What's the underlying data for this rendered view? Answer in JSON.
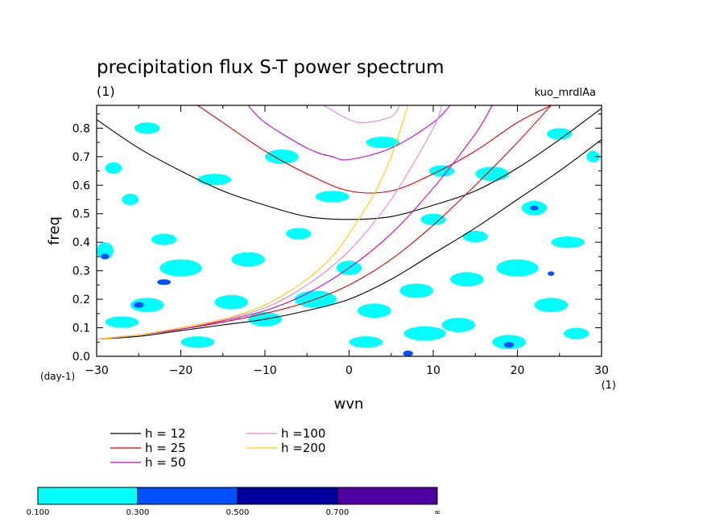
{
  "header": {
    "title": "precipitation flux S-T power spectrum",
    "subtitle": "(1)",
    "experiment": "kuo_mrdlAa"
  },
  "chart_data": {
    "type": "contour",
    "xlabel": "wvn",
    "ylabel": "freq",
    "xunit": "(1)",
    "yunit": "(day-1)",
    "xlim": [
      -30,
      30
    ],
    "ylim": [
      0,
      0.88
    ],
    "xticks": [
      -30,
      -20,
      -10,
      0,
      10,
      20,
      30
    ],
    "yticks": [
      0.0,
      0.1,
      0.2,
      0.3,
      0.4,
      0.5,
      0.6,
      0.7,
      0.8
    ],
    "series": [
      {
        "name": "h = 12",
        "color": "#000000",
        "x": [
          -30,
          -25,
          -20,
          -15,
          -10,
          -5,
          0,
          5,
          10,
          15,
          20,
          25,
          30
        ],
        "y": [
          0.83,
          0.73,
          0.65,
          0.58,
          0.53,
          0.49,
          0.48,
          0.49,
          0.53,
          0.58,
          0.66,
          0.76,
          0.87
        ]
      },
      {
        "name": "h = 25",
        "color": "#e00000",
        "x": [
          -18,
          -15,
          -10,
          -5,
          0,
          5,
          10,
          15,
          20,
          24
        ],
        "y": [
          0.88,
          0.82,
          0.72,
          0.64,
          0.58,
          0.58,
          0.64,
          0.72,
          0.82,
          0.88
        ]
      },
      {
        "name": "h = 50",
        "color": "#cc00cc",
        "x": [
          -12,
          -10,
          -5,
          -2,
          0,
          5,
          10,
          12
        ],
        "y": [
          0.88,
          0.82,
          0.73,
          0.7,
          0.69,
          0.73,
          0.82,
          0.88
        ]
      },
      {
        "name": "h =100",
        "color": "#dd88dd",
        "x": [
          -3,
          0,
          2,
          5,
          6
        ],
        "y": [
          0.88,
          0.83,
          0.82,
          0.84,
          0.88
        ]
      },
      {
        "name": "h = 12",
        "color": "#000000",
        "x": [
          -30,
          -25,
          -20,
          -15,
          -10,
          -5,
          0,
          5,
          10,
          15,
          20,
          25,
          30
        ],
        "y": [
          0.06,
          0.07,
          0.09,
          0.11,
          0.13,
          0.16,
          0.2,
          0.27,
          0.36,
          0.45,
          0.55,
          0.65,
          0.76
        ]
      },
      {
        "name": "h = 25",
        "color": "#e00000",
        "x": [
          -30,
          -25,
          -20,
          -15,
          -10,
          -5,
          0,
          5,
          10,
          15,
          20,
          24
        ],
        "y": [
          0.06,
          0.075,
          0.095,
          0.12,
          0.15,
          0.19,
          0.25,
          0.34,
          0.46,
          0.6,
          0.75,
          0.88
        ]
      },
      {
        "name": "h = 50",
        "color": "#cc00cc",
        "x": [
          -30,
          -25,
          -20,
          -15,
          -10,
          -5,
          0,
          5,
          10,
          15,
          17
        ],
        "y": [
          0.06,
          0.075,
          0.095,
          0.125,
          0.16,
          0.22,
          0.31,
          0.43,
          0.59,
          0.78,
          0.88
        ]
      },
      {
        "name": "h =100",
        "color": "#dd88dd",
        "x": [
          -30,
          -25,
          -20,
          -15,
          -10,
          -5,
          0,
          5,
          10,
          11
        ],
        "y": [
          0.06,
          0.075,
          0.1,
          0.13,
          0.17,
          0.25,
          0.37,
          0.55,
          0.8,
          0.88
        ]
      },
      {
        "name": "h =200",
        "color": "#ffcc00",
        "x": [
          -30,
          -25,
          -20,
          -15,
          -10,
          -5,
          -2,
          0,
          3,
          5,
          7
        ],
        "y": [
          0.06,
          0.075,
          0.1,
          0.13,
          0.18,
          0.27,
          0.35,
          0.43,
          0.57,
          0.7,
          0.88
        ]
      }
    ],
    "legend": {
      "placement": "bottom",
      "entries": [
        {
          "label": "h = 12",
          "color": "#000000"
        },
        {
          "label": "h = 25",
          "color": "#e00000"
        },
        {
          "label": "h = 50",
          "color": "#cc00cc"
        },
        {
          "label": "h =100",
          "color": "#dd88dd"
        },
        {
          "label": "h =200",
          "color": "#ffcc00"
        }
      ]
    },
    "colorbar": {
      "levels": [
        "0.100",
        "0.300",
        "0.500",
        "0.700",
        "∞"
      ],
      "colors": [
        "#00ffff",
        "#0050ff",
        "#0000a0",
        "#5000a0"
      ]
    },
    "fill_regions": [
      {
        "level": 0.1,
        "x": -29,
        "y": 0.37,
        "rx": 1.0,
        "ry": 0.03
      },
      {
        "level": 0.1,
        "x": -24,
        "y": 0.18,
        "rx": 2.0,
        "ry": 0.025
      },
      {
        "level": 0.1,
        "x": -27,
        "y": 0.12,
        "rx": 2.0,
        "ry": 0.02
      },
      {
        "level": 0.1,
        "x": -20,
        "y": 0.31,
        "rx": 2.5,
        "ry": 0.03
      },
      {
        "level": 0.1,
        "x": -14,
        "y": 0.19,
        "rx": 2.0,
        "ry": 0.025
      },
      {
        "level": 0.1,
        "x": -10,
        "y": 0.13,
        "rx": 2.0,
        "ry": 0.025
      },
      {
        "level": 0.1,
        "x": -12,
        "y": 0.34,
        "rx": 2.0,
        "ry": 0.025
      },
      {
        "level": 0.1,
        "x": -22,
        "y": 0.41,
        "rx": 1.5,
        "ry": 0.02
      },
      {
        "level": 0.1,
        "x": -16,
        "y": 0.62,
        "rx": 2.0,
        "ry": 0.02
      },
      {
        "level": 0.1,
        "x": -24,
        "y": 0.8,
        "rx": 1.5,
        "ry": 0.02
      },
      {
        "level": 0.1,
        "x": -28,
        "y": 0.66,
        "rx": 1.0,
        "ry": 0.02
      },
      {
        "level": 0.1,
        "x": -8,
        "y": 0.7,
        "rx": 2.0,
        "ry": 0.025
      },
      {
        "level": 0.1,
        "x": -6,
        "y": 0.43,
        "rx": 1.5,
        "ry": 0.02
      },
      {
        "level": 0.1,
        "x": -4,
        "y": 0.2,
        "rx": 2.5,
        "ry": 0.03
      },
      {
        "level": 0.1,
        "x": 3,
        "y": 0.16,
        "rx": 2.0,
        "ry": 0.025
      },
      {
        "level": 0.1,
        "x": 0,
        "y": 0.31,
        "rx": 1.5,
        "ry": 0.025
      },
      {
        "level": 0.1,
        "x": 8,
        "y": 0.23,
        "rx": 2.0,
        "ry": 0.025
      },
      {
        "level": 0.1,
        "x": 9,
        "y": 0.08,
        "rx": 2.5,
        "ry": 0.025
      },
      {
        "level": 0.1,
        "x": 2,
        "y": 0.05,
        "rx": 2.0,
        "ry": 0.02
      },
      {
        "level": 0.1,
        "x": 14,
        "y": 0.27,
        "rx": 2.0,
        "ry": 0.025
      },
      {
        "level": 0.1,
        "x": 13,
        "y": 0.11,
        "rx": 2.0,
        "ry": 0.025
      },
      {
        "level": 0.1,
        "x": 19,
        "y": 0.05,
        "rx": 2.0,
        "ry": 0.025
      },
      {
        "level": 0.1,
        "x": 20,
        "y": 0.31,
        "rx": 2.5,
        "ry": 0.03
      },
      {
        "level": 0.1,
        "x": 24,
        "y": 0.18,
        "rx": 2.0,
        "ry": 0.025
      },
      {
        "level": 0.1,
        "x": 27,
        "y": 0.08,
        "rx": 1.5,
        "ry": 0.02
      },
      {
        "level": 0.1,
        "x": 26,
        "y": 0.4,
        "rx": 2.0,
        "ry": 0.02
      },
      {
        "level": 0.1,
        "x": 22,
        "y": 0.52,
        "rx": 1.5,
        "ry": 0.025
      },
      {
        "level": 0.1,
        "x": 17,
        "y": 0.64,
        "rx": 2.0,
        "ry": 0.025
      },
      {
        "level": 0.1,
        "x": 25,
        "y": 0.78,
        "rx": 1.5,
        "ry": 0.02
      },
      {
        "level": 0.1,
        "x": 4,
        "y": 0.75,
        "rx": 2.0,
        "ry": 0.02
      },
      {
        "level": 0.1,
        "x": -2,
        "y": 0.56,
        "rx": 2.0,
        "ry": 0.02
      },
      {
        "level": 0.1,
        "x": 10,
        "y": 0.48,
        "rx": 1.5,
        "ry": 0.02
      },
      {
        "level": 0.1,
        "x": 11,
        "y": 0.65,
        "rx": 1.5,
        "ry": 0.02
      },
      {
        "level": 0.1,
        "x": -26,
        "y": 0.55,
        "rx": 1.0,
        "ry": 0.02
      },
      {
        "level": 0.1,
        "x": 29,
        "y": 0.7,
        "rx": 0.8,
        "ry": 0.02
      },
      {
        "level": 0.1,
        "x": 15,
        "y": 0.42,
        "rx": 1.5,
        "ry": 0.02
      },
      {
        "level": 0.1,
        "x": -18,
        "y": 0.05,
        "rx": 2.0,
        "ry": 0.02
      },
      {
        "level": 0.3,
        "x": -22,
        "y": 0.26,
        "rx": 0.8,
        "ry": 0.01
      },
      {
        "level": 0.3,
        "x": -25,
        "y": 0.18,
        "rx": 0.6,
        "ry": 0.01
      },
      {
        "level": 0.3,
        "x": 22,
        "y": 0.52,
        "rx": 0.5,
        "ry": 0.008
      },
      {
        "level": 0.3,
        "x": 7,
        "y": 0.01,
        "rx": 0.6,
        "ry": 0.01
      },
      {
        "level": 0.3,
        "x": 19,
        "y": 0.04,
        "rx": 0.6,
        "ry": 0.01
      },
      {
        "level": 0.3,
        "x": -29,
        "y": 0.35,
        "rx": 0.5,
        "ry": 0.01
      },
      {
        "level": 0.3,
        "x": 24,
        "y": 0.29,
        "rx": 0.4,
        "ry": 0.008
      }
    ]
  }
}
